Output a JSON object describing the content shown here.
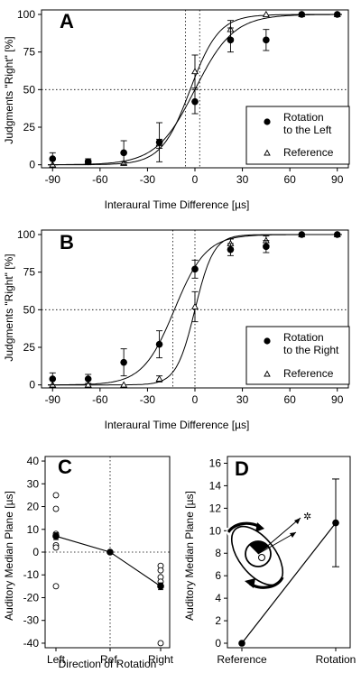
{
  "chart_data": [
    {
      "panel": "A",
      "type": "scatter",
      "xlabel": "Interaural Time Difference [µs]",
      "ylabel": "Judgments \"Right\" [%]",
      "xlim": [
        -97,
        97
      ],
      "ylim": [
        -2,
        103
      ],
      "xticks": [
        -90,
        -60,
        -30,
        0,
        30,
        60,
        90
      ],
      "yticks": [
        0,
        25,
        50,
        75,
        100
      ],
      "ref_h": [
        50
      ],
      "ref_v": [
        -6,
        3
      ],
      "legend_position": "bottom-right",
      "series": [
        {
          "name": "Rotation to the Left",
          "marker": "filled-circle",
          "x": [
            -90,
            -67.5,
            -45,
            -22.5,
            0,
            22.5,
            45,
            67.5,
            90
          ],
          "y": [
            4,
            2,
            8,
            15,
            42,
            83,
            83,
            100,
            100
          ],
          "err": [
            4,
            2,
            8,
            13,
            8,
            8,
            7,
            0,
            0
          ],
          "fit": {
            "mid": 0,
            "slope": 0.082
          }
        },
        {
          "name": "Reference",
          "marker": "open-triangle",
          "x": [
            -90,
            -67.5,
            -45,
            -22.5,
            0,
            22.5,
            45,
            67.5,
            90
          ],
          "y": [
            0,
            2,
            1,
            14,
            62,
            90,
            100,
            100,
            100
          ],
          "err": [
            0,
            1,
            1,
            3,
            11,
            6,
            0,
            0,
            0
          ],
          "fit": {
            "mid": -3,
            "slope": 0.11
          }
        }
      ]
    },
    {
      "panel": "B",
      "type": "scatter",
      "xlabel": "Interaural Time Difference [µs]",
      "ylabel": "Judgments \"Right\" [%]",
      "xlim": [
        -97,
        97
      ],
      "ylim": [
        -2,
        103
      ],
      "xticks": [
        -90,
        -60,
        -30,
        0,
        30,
        60,
        90
      ],
      "yticks": [
        0,
        25,
        50,
        75,
        100
      ],
      "ref_h": [
        50
      ],
      "ref_v": [
        -14,
        0
      ],
      "legend_position": "bottom-right",
      "series": [
        {
          "name": "Rotation to the Right",
          "marker": "filled-circle",
          "x": [
            -90,
            -67.5,
            -45,
            -22.5,
            0,
            22.5,
            45,
            67.5,
            90
          ],
          "y": [
            4,
            4,
            15,
            27,
            77,
            90,
            92,
            100,
            100
          ],
          "err": [
            4,
            3,
            9,
            9,
            6,
            4,
            4,
            0,
            0
          ],
          "fit": {
            "mid": -13,
            "slope": 0.1
          }
        },
        {
          "name": "Reference",
          "marker": "open-triangle",
          "x": [
            -90,
            -67.5,
            -45,
            -22.5,
            0,
            22.5,
            45,
            67.5,
            90
          ],
          "y": [
            0,
            0,
            0,
            4,
            52,
            94,
            96,
            100,
            100
          ],
          "err": [
            0,
            0,
            0,
            2,
            10,
            3,
            3,
            0,
            0
          ],
          "fit": {
            "mid": 0,
            "slope": 0.17
          }
        }
      ]
    },
    {
      "panel": "C",
      "type": "scatter",
      "xlabel": "Direction of Rotation",
      "ylabel": "Auditory Median Plane [µs]",
      "categories": [
        "Left",
        "Ref.",
        "Right"
      ],
      "ylim": [
        -42,
        42
      ],
      "yticks": [
        40,
        30,
        20,
        10,
        0,
        -10,
        -20,
        -30,
        -40
      ],
      "ref_h": [
        0
      ],
      "ref_v_category": "Ref.",
      "individual_points": [
        {
          "category": "Left",
          "values": [
            25,
            19,
            8,
            7,
            3,
            2,
            -15
          ]
        },
        {
          "category": "Right",
          "values": [
            -6,
            -8,
            -11,
            -13,
            -15,
            -40
          ]
        }
      ],
      "mean_series": {
        "values": [
          7,
          0,
          -15
        ],
        "err": [
          1.5,
          0.5,
          1.5
        ]
      }
    },
    {
      "panel": "D",
      "type": "line",
      "ylabel": "Auditory Median Plane [µs]",
      "categories": [
        "Reference",
        "Rotation"
      ],
      "ylim": [
        -0.4,
        16.6
      ],
      "yticks": [
        0,
        2,
        4,
        6,
        8,
        10,
        12,
        14,
        16
      ],
      "values": [
        0,
        10.7
      ],
      "err_low": [
        0,
        3.9
      ],
      "err_high": [
        0,
        3.9
      ],
      "inset_icon": "rotating-head-diagram"
    }
  ]
}
